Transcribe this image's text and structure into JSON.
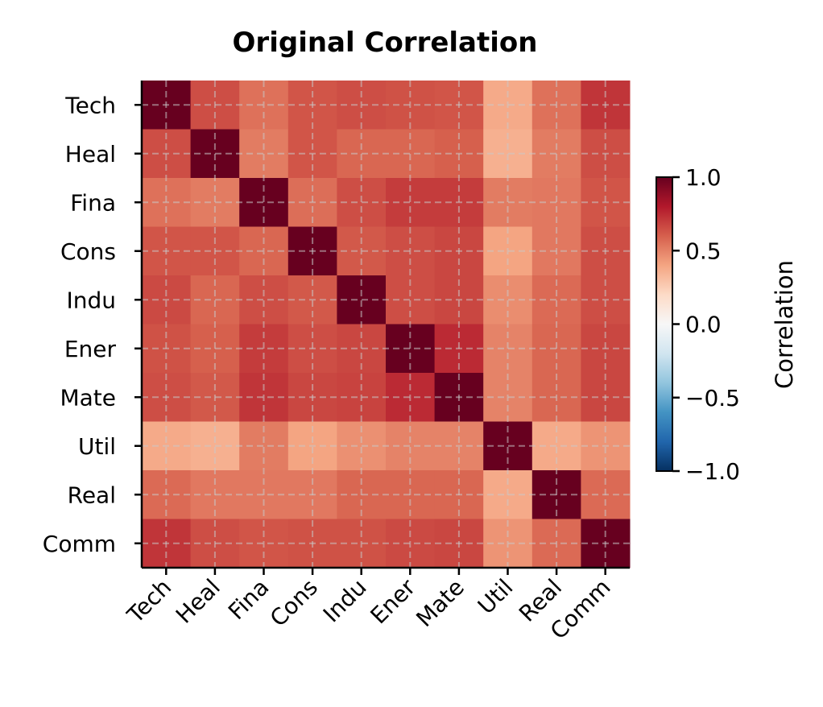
{
  "chart_data": {
    "type": "heatmap",
    "title": "Original Correlation",
    "xlabel": "",
    "ylabel": "",
    "categories": [
      "Tech",
      "Heal",
      "Fina",
      "Cons",
      "Indu",
      "Ener",
      "Mate",
      "Util",
      "Real",
      "Comm"
    ],
    "values": [
      [
        1.0,
        0.65,
        0.55,
        0.63,
        0.65,
        0.64,
        0.63,
        0.38,
        0.55,
        0.72
      ],
      [
        0.65,
        1.0,
        0.52,
        0.63,
        0.58,
        0.58,
        0.6,
        0.36,
        0.52,
        0.65
      ],
      [
        0.55,
        0.52,
        1.0,
        0.56,
        0.65,
        0.7,
        0.7,
        0.52,
        0.53,
        0.63
      ],
      [
        0.63,
        0.63,
        0.58,
        1.0,
        0.62,
        0.65,
        0.67,
        0.4,
        0.53,
        0.65
      ],
      [
        0.66,
        0.58,
        0.65,
        0.62,
        1.0,
        0.65,
        0.67,
        0.47,
        0.57,
        0.65
      ],
      [
        0.64,
        0.6,
        0.7,
        0.65,
        0.67,
        1.0,
        0.75,
        0.5,
        0.58,
        0.67
      ],
      [
        0.65,
        0.62,
        0.72,
        0.67,
        0.68,
        0.75,
        1.0,
        0.5,
        0.58,
        0.67
      ],
      [
        0.38,
        0.36,
        0.52,
        0.4,
        0.46,
        0.5,
        0.5,
        1.0,
        0.38,
        0.45
      ],
      [
        0.57,
        0.53,
        0.53,
        0.53,
        0.58,
        0.58,
        0.58,
        0.38,
        1.0,
        0.57
      ],
      [
        0.72,
        0.65,
        0.63,
        0.64,
        0.64,
        0.66,
        0.67,
        0.45,
        0.57,
        1.0
      ]
    ],
    "colormap": "RdBu_r",
    "vmin": -1.0,
    "vmax": 1.0,
    "grid": true,
    "colorbar": {
      "label": "Correlation",
      "ticks": [
        1.0,
        0.5,
        0.0,
        -0.5,
        -1.0
      ],
      "tick_labels": [
        "1.0",
        "0.5",
        "0.0",
        "−0.5",
        "−1.0"
      ],
      "placement": "right"
    }
  }
}
